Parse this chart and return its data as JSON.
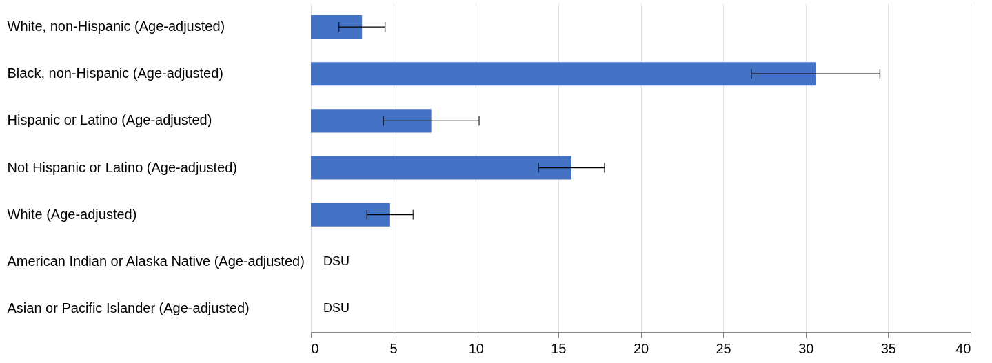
{
  "chart_data": {
    "type": "bar",
    "orientation": "horizontal",
    "categories": [
      "White, non-Hispanic (Age-adjusted)",
      "Black, non-Hispanic (Age-adjusted)",
      "Hispanic or Latino (Age-adjusted)",
      "Not Hispanic or Latino (Age-adjusted)",
      "White (Age-adjusted)",
      "American Indian or Alaska Native (Age-adjusted)",
      "Asian or Pacific Islander (Age-adjusted)"
    ],
    "values": [
      3.1,
      30.6,
      7.3,
      15.8,
      4.8,
      null,
      null
    ],
    "errors": [
      [
        1.7,
        4.5
      ],
      [
        26.7,
        34.5
      ],
      [
        4.4,
        10.2
      ],
      [
        13.8,
        17.8
      ],
      [
        3.4,
        6.2
      ],
      null,
      null
    ],
    "value_labels": [
      null,
      null,
      null,
      null,
      null,
      "DSU",
      "DSU"
    ],
    "color": "#4472c4",
    "xlim": [
      0,
      40
    ],
    "xticks": [
      0,
      5,
      10,
      15,
      20,
      25,
      30,
      35,
      40
    ],
    "grid": "x"
  }
}
